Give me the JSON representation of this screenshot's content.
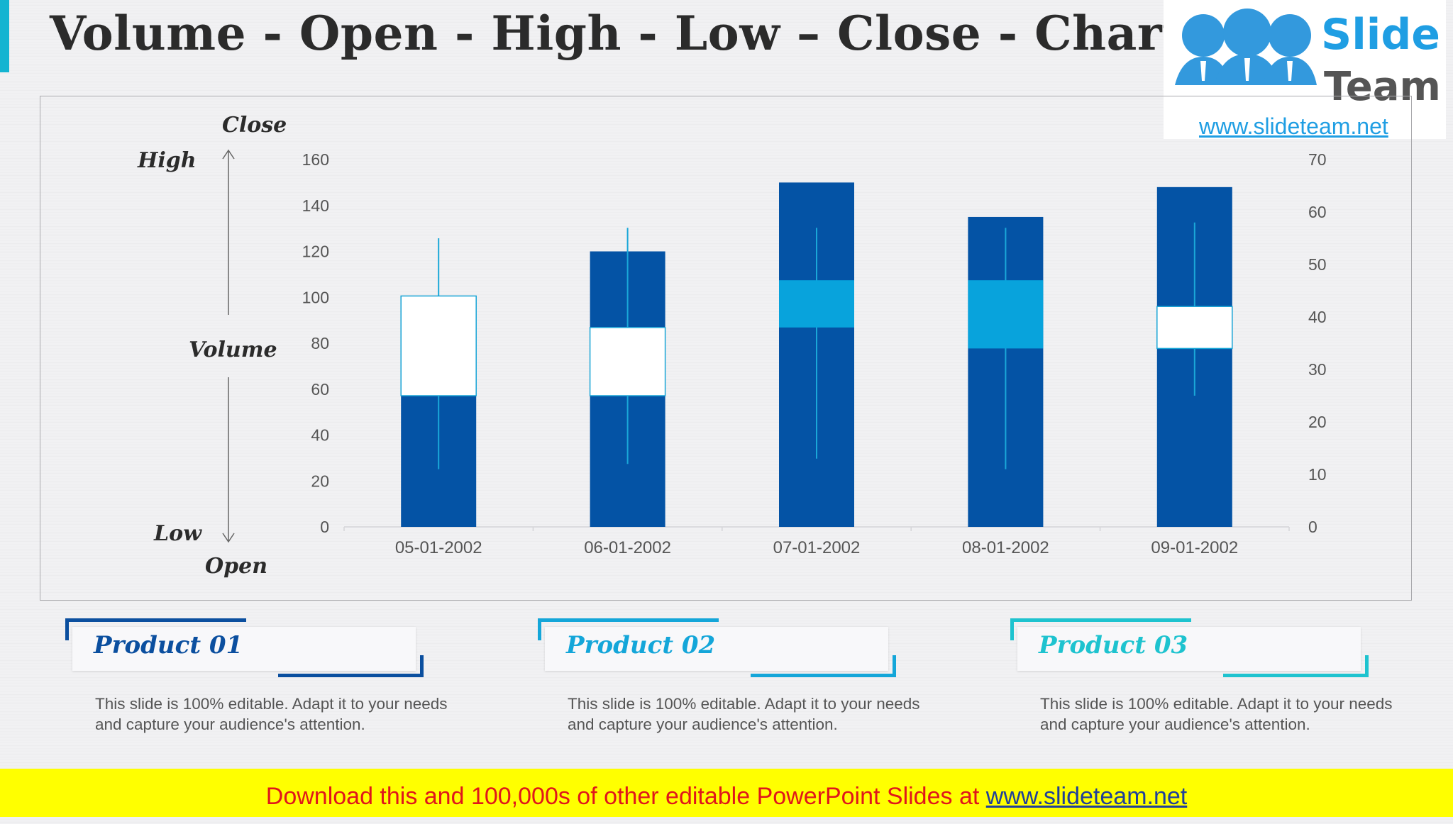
{
  "title": "Volume - Open - High - Low – Close - Chart",
  "logo": {
    "word1": "Slide",
    "word2": "Team",
    "url": "www.slideteam.net"
  },
  "axis_legend": {
    "close": "Close",
    "high": "High",
    "volume": "Volume",
    "low": "Low",
    "open": "Open"
  },
  "chart_data": {
    "type": "candlestick-volume",
    "categories": [
      "05-01-2002",
      "06-01-2002",
      "07-01-2002",
      "08-01-2002",
      "09-01-2002"
    ],
    "volume": [
      100,
      120,
      150,
      135,
      148
    ],
    "open": [
      25,
      25,
      47,
      47,
      34
    ],
    "high": [
      55,
      57,
      57,
      57,
      58
    ],
    "low": [
      11,
      12,
      13,
      11,
      25
    ],
    "close": [
      44,
      38,
      38,
      34,
      42
    ],
    "y_left": {
      "min": 0,
      "max": 160,
      "ticks": [
        0,
        20,
        40,
        60,
        80,
        100,
        120,
        140,
        160
      ]
    },
    "y_right": {
      "min": 0,
      "max": 70,
      "ticks": [
        0,
        10,
        20,
        30,
        40,
        50,
        60,
        70
      ]
    },
    "colors": {
      "volume": "#0453a5",
      "down": "#08a3dc",
      "up": "#ffffff",
      "wick": "#1aa7d8"
    },
    "grid": false
  },
  "products": [
    {
      "label": "Product 01",
      "color": "#0b4f9f",
      "desc": "This slide is 100% editable. Adapt it to your needs and capture your audience's attention."
    },
    {
      "label": "Product 02",
      "color": "#14a6d9",
      "desc": "This slide is 100% editable. Adapt it to your needs and capture your audience's attention."
    },
    {
      "label": "Product 03",
      "color": "#1ec3cf",
      "desc": "This slide is 100% editable. Adapt it to your needs and capture your audience's attention."
    }
  ],
  "footer": {
    "text": "Download this and 100,000s of other editable PowerPoint Slides at ",
    "link": "www.slideteam.net"
  }
}
